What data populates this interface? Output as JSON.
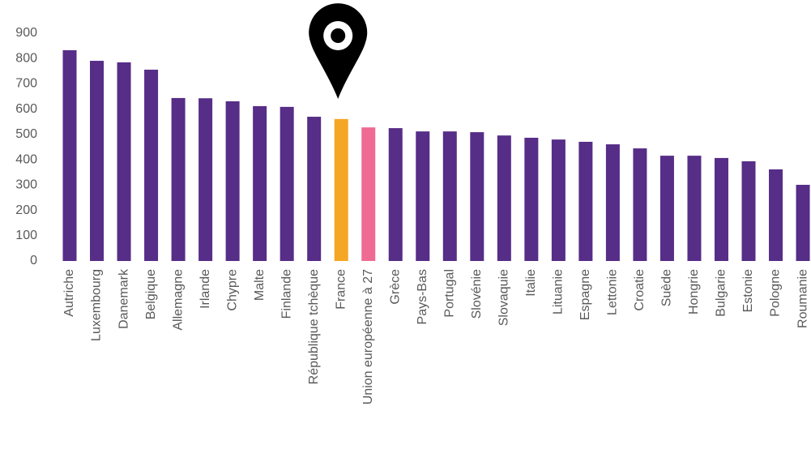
{
  "chart_data": {
    "type": "bar",
    "categories": [
      "Autriche",
      "Luxembourg",
      "Danemark",
      "Belgique",
      "Allemagne",
      "Irlande",
      "Chypre",
      "Malte",
      "Finlande",
      "République tchèque",
      "France",
      "Union européenne à 27",
      "Grèce",
      "Pays-Bas",
      "Portugal",
      "Slovénie",
      "Slovaquie",
      "Italie",
      "Lituanie",
      "Espagne",
      "Lettonie",
      "Croatie",
      "Suède",
      "Hongrie",
      "Bulgarie",
      "Estonie",
      "Pologne",
      "Roumanie"
    ],
    "values": [
      833,
      791,
      785,
      756,
      644,
      643,
      631,
      612,
      609,
      570,
      561,
      528,
      525,
      512,
      512,
      509,
      496,
      487,
      480,
      471,
      461,
      445,
      416,
      416,
      407,
      394,
      362,
      301
    ],
    "colors": [
      "#562d87",
      "#562d87",
      "#562d87",
      "#562d87",
      "#562d87",
      "#562d87",
      "#562d87",
      "#562d87",
      "#562d87",
      "#562d87",
      "#f5a623",
      "#ef6b93",
      "#562d87",
      "#562d87",
      "#562d87",
      "#562d87",
      "#562d87",
      "#562d87",
      "#562d87",
      "#562d87",
      "#562d87",
      "#562d87",
      "#562d87",
      "#562d87",
      "#562d87",
      "#562d87",
      "#562d87",
      "#562d87"
    ],
    "ylim": [
      0,
      900
    ],
    "yticks": [
      0,
      100,
      200,
      300,
      400,
      500,
      600,
      700,
      800,
      900
    ],
    "grid": false
  }
}
